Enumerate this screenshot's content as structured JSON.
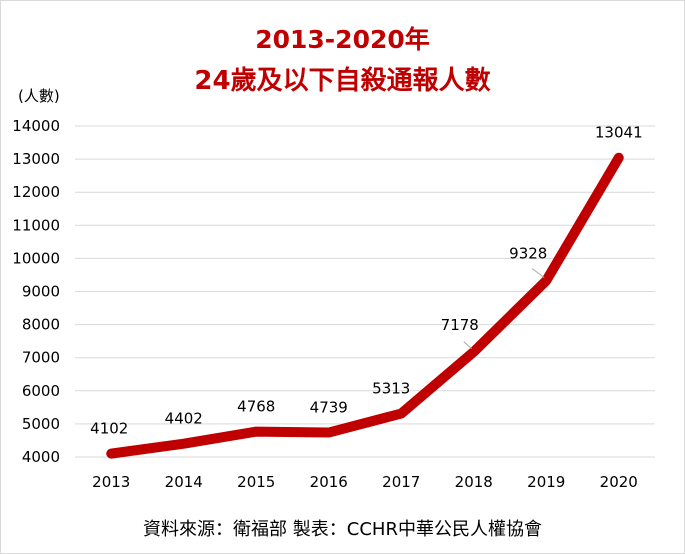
{
  "chart_data": {
    "type": "line",
    "title": "2013-2020年",
    "subtitle": "24歲及以下自殺通報人數",
    "ylabel": "(人數)",
    "xlabel": "",
    "categories": [
      "2013",
      "2014",
      "2015",
      "2016",
      "2017",
      "2018",
      "2019",
      "2020"
    ],
    "series": [
      {
        "values": [
          4102,
          4402,
          4768,
          4739,
          5313,
          7178,
          9328,
          13041
        ]
      }
    ],
    "data_labels": [
      "4102",
      "4402",
      "4768",
      "4739",
      "5313",
      "7178",
      "9328",
      "13041"
    ],
    "ylim": [
      4000,
      14000
    ],
    "yticks": [
      "4000",
      "5000",
      "6000",
      "7000",
      "8000",
      "9000",
      "10000",
      "11000",
      "12000",
      "13000",
      "14000"
    ],
    "grid": "horizontal",
    "line_color": "#c00000",
    "title_color": "#c00000"
  },
  "source_note": "資料來源：衛福部   製表：CCHR中華公民人權協會"
}
